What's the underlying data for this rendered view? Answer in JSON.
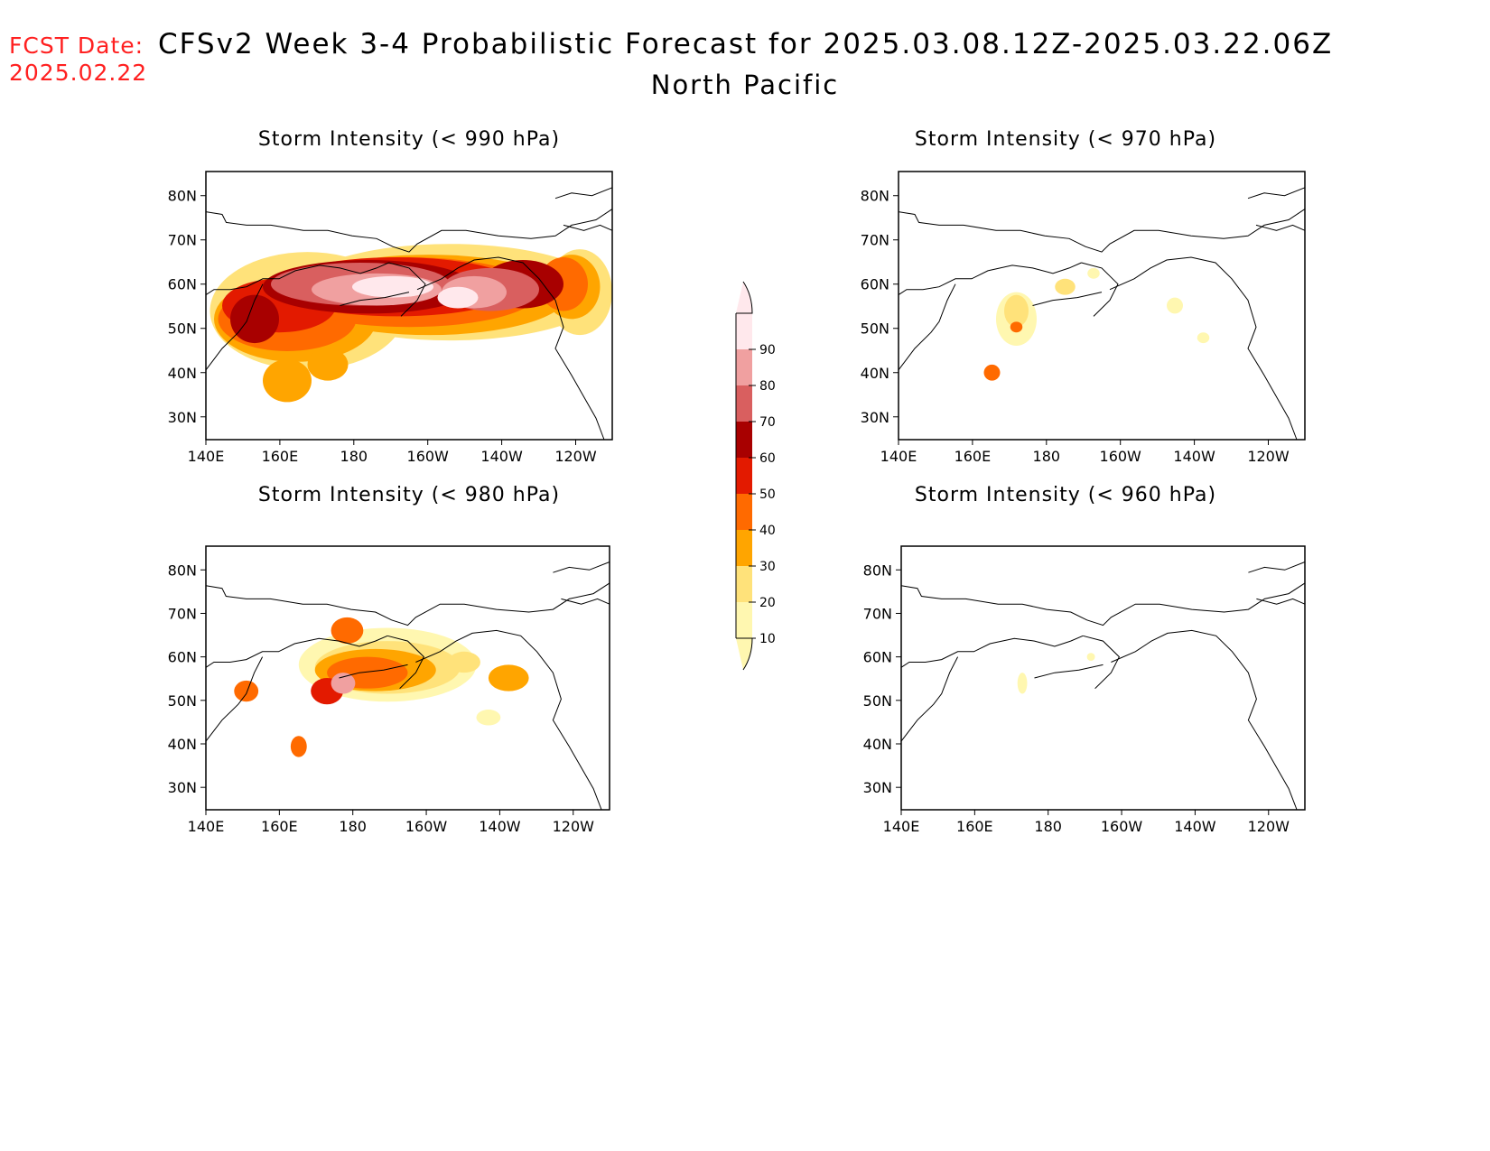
{
  "header": {
    "fcst_label": "FCST Date:",
    "fcst_date": "2025.02.22",
    "title": "CFSv2 Week 3-4 Probabilistic Forecast for 2025.03.08.12Z-2025.03.22.06Z",
    "region": "North Pacific"
  },
  "panels": [
    {
      "id": "p990",
      "title": "Storm Intensity (< 990 hPa)"
    },
    {
      "id": "p970",
      "title": "Storm Intensity (< 970 hPa)"
    },
    {
      "id": "p980",
      "title": "Storm Intensity (< 980 hPa)"
    },
    {
      "id": "p960",
      "title": "Storm Intensity (< 960 hPa)"
    }
  ],
  "axes": {
    "lat_ticks": [
      "80N",
      "70N",
      "60N",
      "50N",
      "40N",
      "30N"
    ],
    "lon_ticks": [
      "140E",
      "160E",
      "180",
      "160W",
      "140W",
      "120W"
    ]
  },
  "colorbar": {
    "levels": [
      "10",
      "20",
      "30",
      "40",
      "50",
      "60",
      "70",
      "80",
      "90"
    ],
    "colors": [
      "#fff7b0",
      "#ffe27a",
      "#ffa500",
      "#ff6a00",
      "#e31a00",
      "#a80000",
      "#d95f5f",
      "#f0a0a0",
      "#ffe8ec"
    ]
  }
}
